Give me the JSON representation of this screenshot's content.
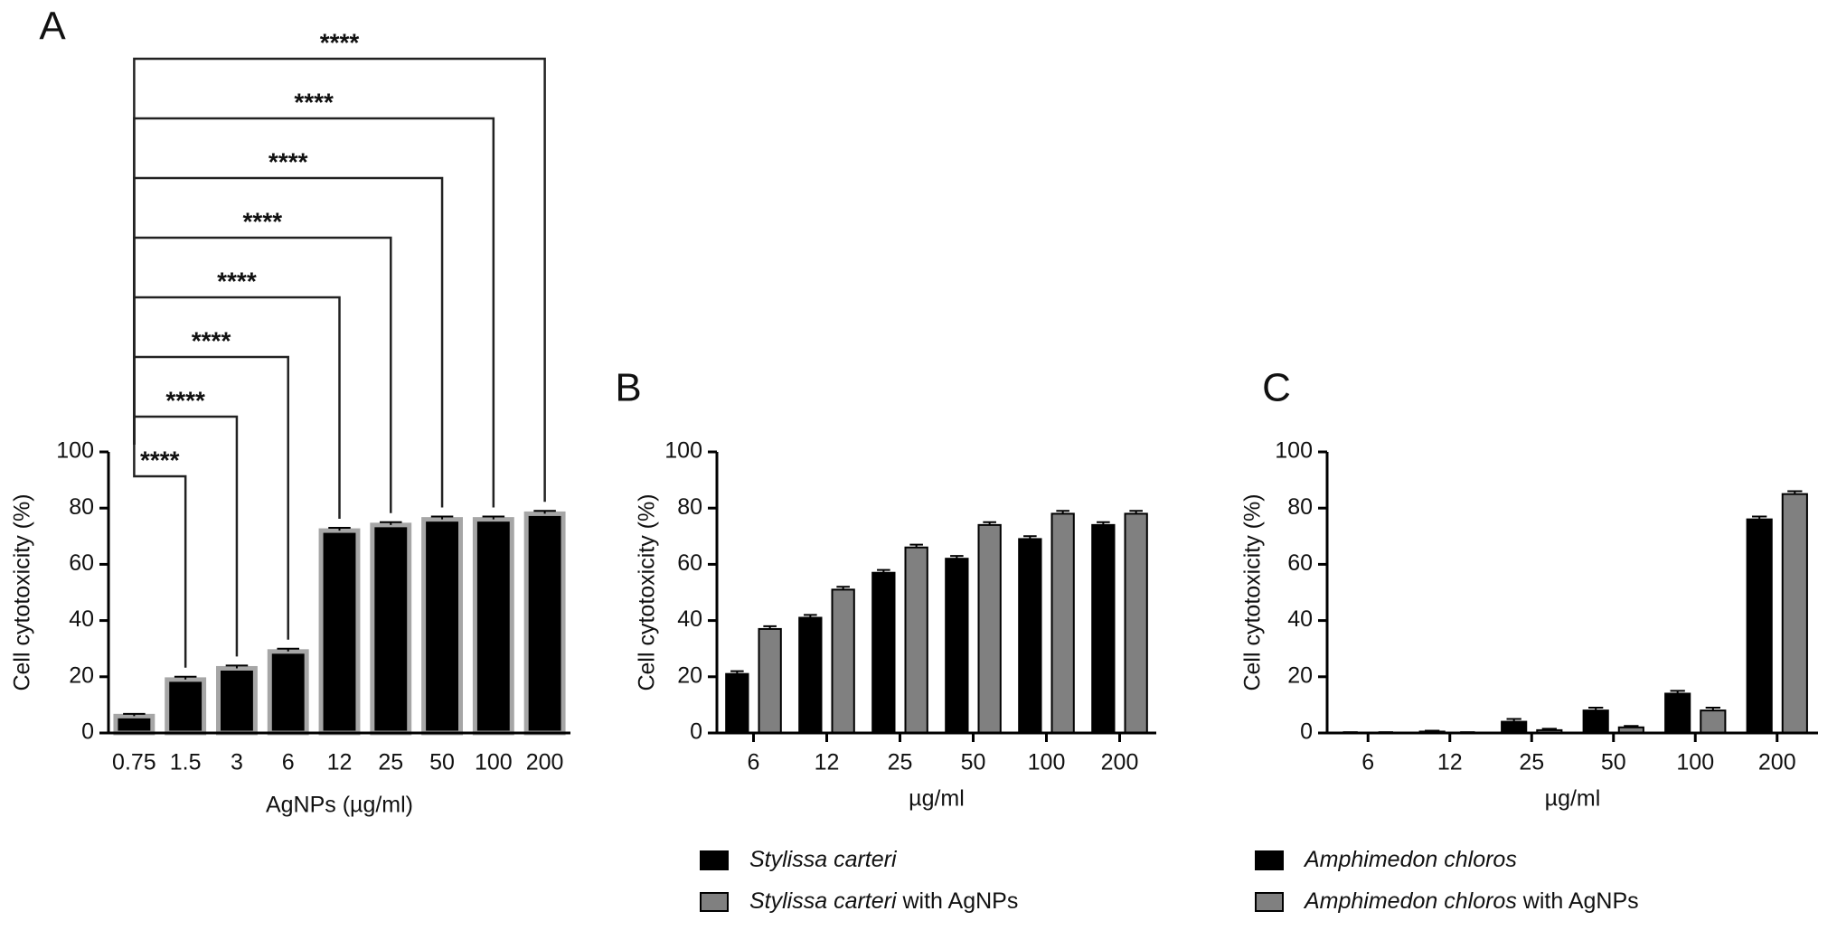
{
  "chart_data": [
    {
      "type": "bar",
      "panel": "A",
      "x_label": "AgNPs (µg/ml)",
      "y_label": "Cell cytotoxicity (%)",
      "categories": [
        "0.75",
        "1.5",
        "3",
        "6",
        "12",
        "25",
        "50",
        "100",
        "200"
      ],
      "series": [
        {
          "color": "#000000",
          "edge_color": "#a6a6a6",
          "values": [
            6,
            19,
            23,
            29,
            72,
            74,
            76,
            76,
            78
          ],
          "errors": [
            0.8,
            1,
            1,
            1,
            1,
            1,
            1,
            1,
            1
          ]
        }
      ],
      "annotations": [
        "****",
        "****",
        "****",
        "****",
        "****",
        "****",
        "****",
        "****"
      ],
      "ylim": [
        0,
        100
      ],
      "yticks": [
        0,
        20,
        40,
        60,
        80,
        100
      ]
    },
    {
      "type": "bar",
      "panel": "B",
      "x_label": "µg/ml",
      "y_label": "Cell cytotoxicity (%)",
      "categories": [
        "6",
        "12",
        "25",
        "50",
        "100",
        "200"
      ],
      "series": [
        {
          "name": "Stylissa carteri",
          "color": "#000000",
          "values": [
            21,
            41,
            57,
            62,
            69,
            74
          ],
          "errors": [
            1,
            1,
            1,
            1,
            1,
            1
          ]
        },
        {
          "name": "Stylissa carteri with AgNPs",
          "color": "#808080",
          "values": [
            37,
            51,
            66,
            74,
            78,
            78
          ],
          "errors": [
            1,
            1,
            1,
            1,
            1,
            1
          ]
        }
      ],
      "ylim": [
        0,
        100
      ],
      "yticks": [
        0,
        20,
        40,
        60,
        80,
        100
      ]
    },
    {
      "type": "bar",
      "panel": "C",
      "x_label": "µg/ml",
      "y_label": "Cell cytotoxicity (%)",
      "categories": [
        "6",
        "12",
        "25",
        "50",
        "100",
        "200"
      ],
      "series": [
        {
          "name": "Amphimedon chloros",
          "color": "#000000",
          "values": [
            0,
            0.5,
            4,
            8,
            14,
            76
          ],
          "errors": [
            0.3,
            0.3,
            1,
            1,
            1,
            1
          ]
        },
        {
          "name": "Amphimedon chloros with AgNPs",
          "color": "#808080",
          "values": [
            0,
            0,
            1,
            2,
            8,
            85
          ],
          "errors": [
            0.3,
            0.3,
            0.5,
            0.5,
            1,
            1
          ]
        }
      ],
      "ylim": [
        0,
        100
      ],
      "yticks": [
        0,
        20,
        40,
        60,
        80,
        100
      ]
    }
  ]
}
